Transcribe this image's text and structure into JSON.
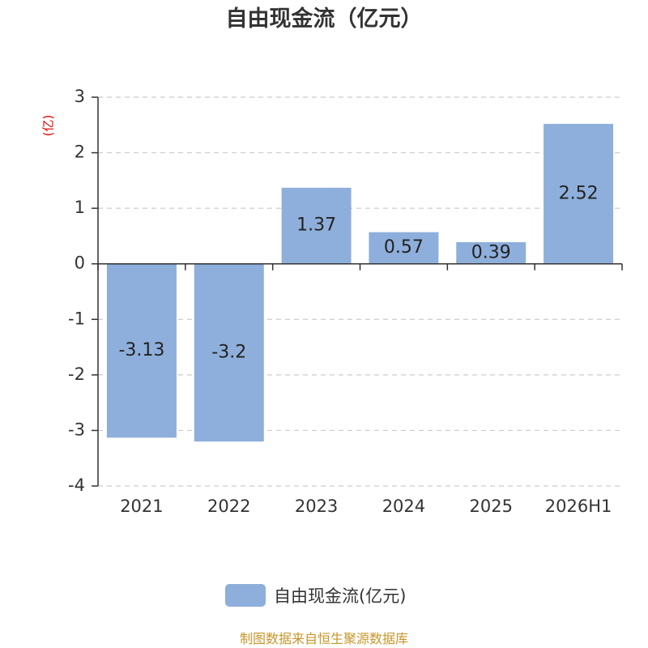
{
  "colors": {
    "bar": "#8eafdb",
    "axis": "#333333",
    "grid": "#cccccc",
    "unit_label": "#dd0000",
    "footer": "#c8962a"
  },
  "footer_text": "制图数据来自恒生聚源数据库",
  "chart_data": {
    "type": "bar",
    "title": "自由现金流（亿元）",
    "unit_label": "(亿)",
    "xlabel": "",
    "ylabel": "",
    "categories": [
      "2021",
      "2022",
      "2023",
      "2024",
      "2025",
      "2026H1"
    ],
    "series": [
      {
        "name": "自由现金流(亿元)",
        "values": [
          -3.13,
          -3.2,
          1.37,
          0.57,
          0.39,
          2.52
        ],
        "labels": [
          "-3.13",
          "-3.2",
          "1.37",
          "0.57",
          "0.39",
          "2.52"
        ]
      }
    ],
    "ylim": [
      -4,
      3
    ],
    "yticks": [
      3,
      2,
      1,
      0,
      -1,
      -2,
      -3,
      -4
    ],
    "grid": true,
    "legend_position": "bottom"
  }
}
